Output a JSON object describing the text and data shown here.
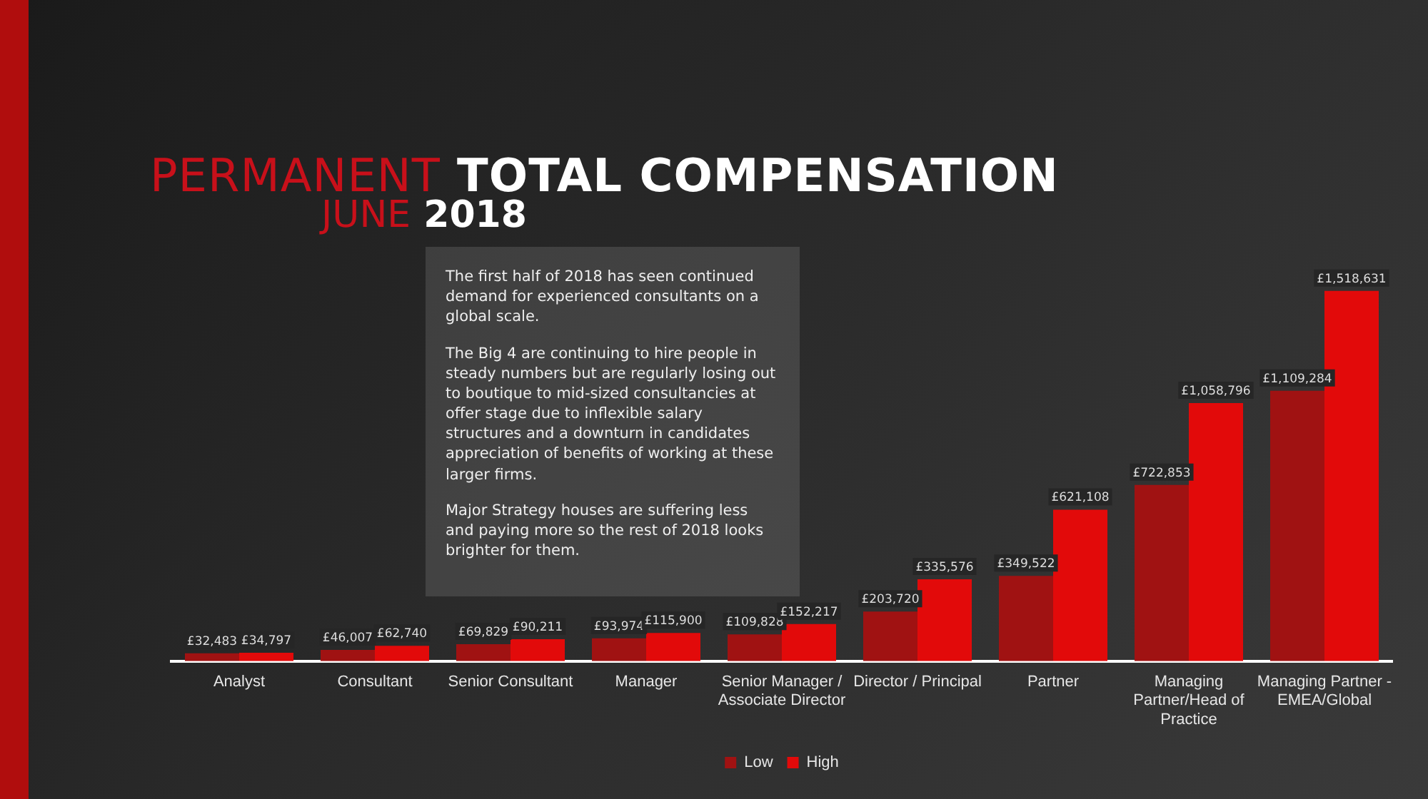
{
  "chart_data": {
    "type": "bar",
    "title": "PERMANENT TOTAL COMPENSATION",
    "subtitle": "JUNE 2018",
    "categories": [
      "Analyst",
      "Consultant",
      "Senior Consultant",
      "Manager",
      "Senior Manager / Associate Director",
      "Director / Principal",
      "Partner",
      "Managing Partner/Head of Practice",
      "Managing Partner - EMEA/Global"
    ],
    "series": [
      {
        "name": "Low",
        "color": "#a01212",
        "values": [
          32483,
          46007,
          69829,
          93974,
          109828,
          203720,
          349522,
          722853,
          1109284
        ],
        "value_labels": [
          "£32,483",
          "£46,007",
          "£69,829",
          "£93,974",
          "£109,828",
          "£203,720",
          "£349,522",
          "£722,853",
          "£1,109,284"
        ]
      },
      {
        "name": "High",
        "color": "#e20a0a",
        "values": [
          34797,
          62740,
          90211,
          115900,
          152217,
          335576,
          621108,
          1058796,
          1518631
        ],
        "value_labels": [
          "£34,797",
          "£62,740",
          "£90,211",
          "£115,900",
          "£152,217",
          "£335,576",
          "£621,108",
          "£1,058,796",
          "£1,518,631"
        ]
      }
    ],
    "grid": false,
    "legend": "bottom",
    "annotations": [
      "The first half of 2018 has seen continued demand for experienced consultants on a global scale.",
      "The Big 4 are continuing to hire people in steady numbers but are regularly losing out to boutique to mid-sized consultancies at offer stage due to inflexible salary structures and a downturn in candidates appreciation of benefits of working at these larger firms.",
      "Major Strategy houses are suffering less and paying more so the rest of 2018 looks brighter for them."
    ]
  }
}
